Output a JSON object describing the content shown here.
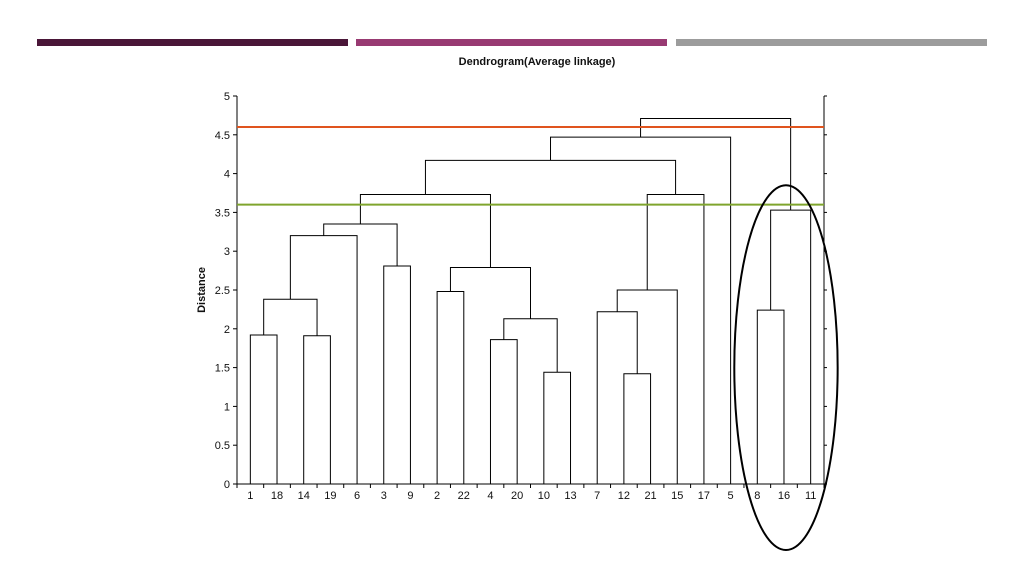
{
  "deco_bars": [
    "#4a1638",
    "#983a72",
    "#9c9c9c"
  ],
  "chart_data": {
    "type": "dendrogram",
    "title": "Dendrogram(Average linkage)",
    "ylabel": "Distance",
    "xlabel": "",
    "ylim": [
      0,
      5
    ],
    "yticks": [
      0,
      0.5,
      1,
      1.5,
      2,
      2.5,
      3,
      3.5,
      4,
      4.5,
      5
    ],
    "leaf_order": [
      "1",
      "18",
      "14",
      "19",
      "6",
      "3",
      "9",
      "2",
      "22",
      "4",
      "20",
      "10",
      "13",
      "7",
      "12",
      "21",
      "15",
      "17",
      "5",
      "8",
      "16",
      "11"
    ],
    "merges": [
      {
        "left": "10",
        "right": "13",
        "height": 1.44
      },
      {
        "left": "12",
        "right": "21",
        "height": 1.42
      },
      {
        "left": "4",
        "right": "20",
        "height": 1.86
      },
      {
        "left": "14",
        "right": "19",
        "height": 1.91
      },
      {
        "left": "1",
        "right": "18",
        "height": 1.92
      },
      {
        "left": "(4,20)",
        "right": "(10,13)",
        "height": 2.13
      },
      {
        "left": "7",
        "right": "(12,21)",
        "height": 2.22
      },
      {
        "left": "8",
        "right": "16",
        "height": 2.24
      },
      {
        "left": "(1,18)",
        "right": "(14,19)",
        "height": 2.38
      },
      {
        "left": "2",
        "right": "22",
        "height": 2.48
      },
      {
        "left": "(7,12,21)",
        "right": "15",
        "height": 2.5
      },
      {
        "left": "(2,22)",
        "right": "(4,20,10,13)",
        "height": 2.79
      },
      {
        "left": "3",
        "right": "9",
        "height": 2.81
      },
      {
        "left": "(1,18,14,19)",
        "right": "6",
        "height": 3.2
      },
      {
        "left": "(1,18,14,19,6)",
        "right": "(3,9)",
        "height": 3.35
      },
      {
        "left": "(8,16)",
        "right": "11",
        "height": 3.53
      },
      {
        "left": "(1,18,14,19,6,3,9)",
        "right": "(2,22,4,20,10,13)",
        "height": 3.73
      },
      {
        "left": "(7,12,21,15)",
        "right": "17",
        "height": 3.73
      },
      {
        "left": "(1,...,13)",
        "right": "(7,12,21,15,17)",
        "height": 4.17
      },
      {
        "left": "(1,...,17)",
        "right": "5",
        "height": 4.47
      },
      {
        "left": "(1,...,5)",
        "right": "(8,16,11)",
        "height": 4.71
      }
    ],
    "cut_lines": [
      {
        "height": 4.6,
        "color": "#e0541e"
      },
      {
        "height": 3.6,
        "color": "#7fa52d"
      }
    ],
    "highlight": {
      "shape": "ellipse",
      "leaves": [
        "8",
        "16",
        "11"
      ],
      "color": "#000000"
    },
    "grid": false,
    "legend": "none"
  }
}
